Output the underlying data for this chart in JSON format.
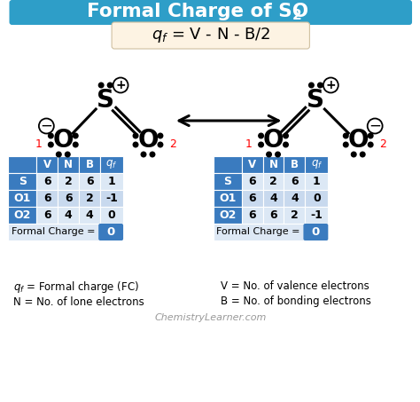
{
  "bg_color": "#ffffff",
  "header_bg": "#2e9ec8",
  "header_text_color": "#ffffff",
  "formula_bg": "#fdf3e3",
  "table1": {
    "rows": [
      [
        "S",
        "6",
        "2",
        "6",
        "1"
      ],
      [
        "O1",
        "6",
        "6",
        "2",
        "-1"
      ],
      [
        "O2",
        "6",
        "4",
        "4",
        "0"
      ]
    ],
    "headers": [
      "",
      "V",
      "N",
      "B",
      "q_f"
    ],
    "formal_charge": "0"
  },
  "table2": {
    "rows": [
      [
        "S",
        "6",
        "2",
        "6",
        "1"
      ],
      [
        "O1",
        "6",
        "4",
        "4",
        "0"
      ],
      [
        "O2",
        "6",
        "6",
        "2",
        "-1"
      ]
    ],
    "headers": [
      "",
      "V",
      "N",
      "B",
      "q_f"
    ],
    "formal_charge": "0"
  },
  "footnote_left1": "q$_f$ = Formal charge (FC)",
  "footnote_left2": "N = No. of lone electrons",
  "footnote_right1": "V = No. of valence electrons",
  "footnote_right2": "B = No. of bonding electrons",
  "watermark": "ChemistryLearner.com",
  "col_header_color": "#3a7bbf",
  "row_blue_color": "#3a7bbf",
  "row_light1": "#dce8f5",
  "row_light2": "#c8d9ee",
  "formal_box_color": "#3a7bbf"
}
